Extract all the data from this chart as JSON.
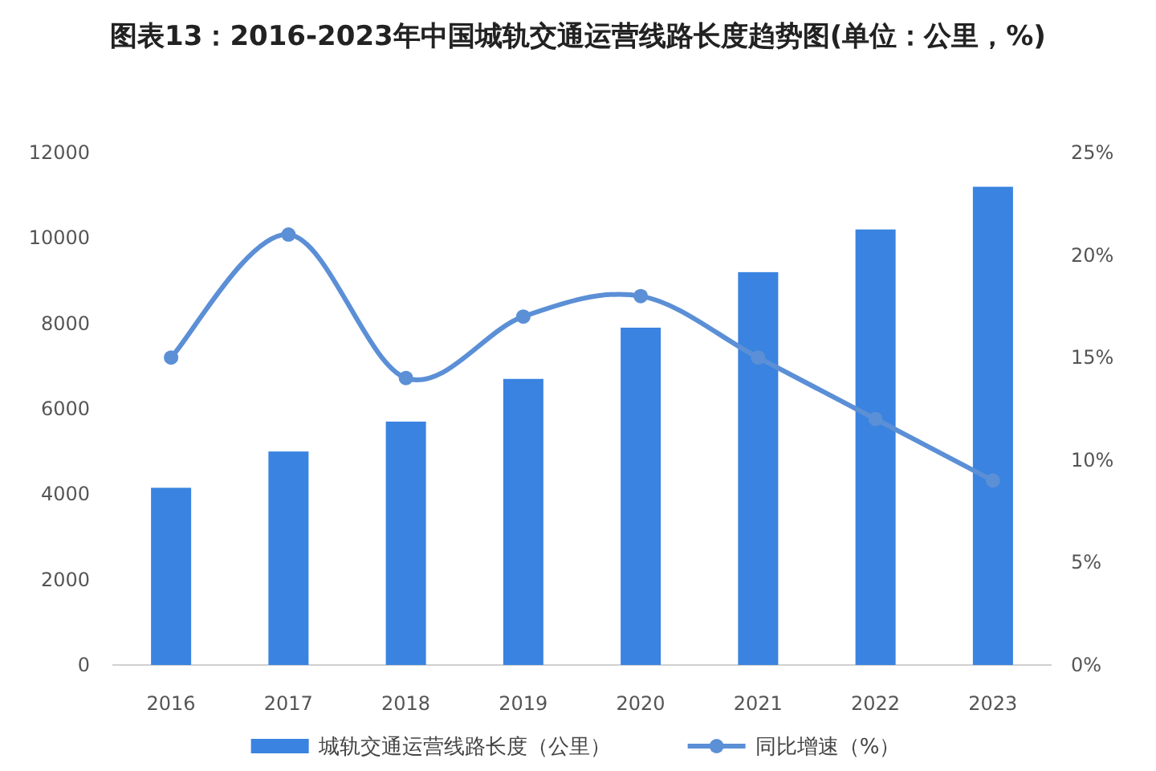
{
  "chart_data": {
    "type": "bar",
    "title": "图表13：2016-2023年中国城轨交通运营线路长度趋势图(单位：公里，%)",
    "categories": [
      "2016",
      "2017",
      "2018",
      "2019",
      "2020",
      "2021",
      "2022",
      "2023"
    ],
    "series": [
      {
        "name": "城轨交通运营线路长度（公里）",
        "color": "#3a83e0",
        "values": [
          4150,
          5000,
          5700,
          6700,
          7900,
          9200,
          10200,
          11200
        ]
      },
      {
        "name": "同比增速（%）",
        "type": "line",
        "axis": "y2",
        "color": "#5b8fd6",
        "marker": "circle",
        "values": [
          15,
          21,
          14,
          17,
          18,
          15,
          12,
          9
        ]
      }
    ],
    "ylim": [
      0,
      12000
    ],
    "yticks": [
      0,
      2000,
      4000,
      6000,
      8000,
      10000,
      12000
    ],
    "y2lim": [
      0,
      25
    ],
    "y2ticks": [
      {
        "value": 0,
        "label": "0%"
      },
      {
        "value": 5,
        "label": "5%"
      },
      {
        "value": 10,
        "label": "10%"
      },
      {
        "value": 15,
        "label": "15%"
      },
      {
        "value": 20,
        "label": "20%"
      },
      {
        "value": 25,
        "label": "25%"
      }
    ],
    "grid": false,
    "legend": "bottom"
  }
}
